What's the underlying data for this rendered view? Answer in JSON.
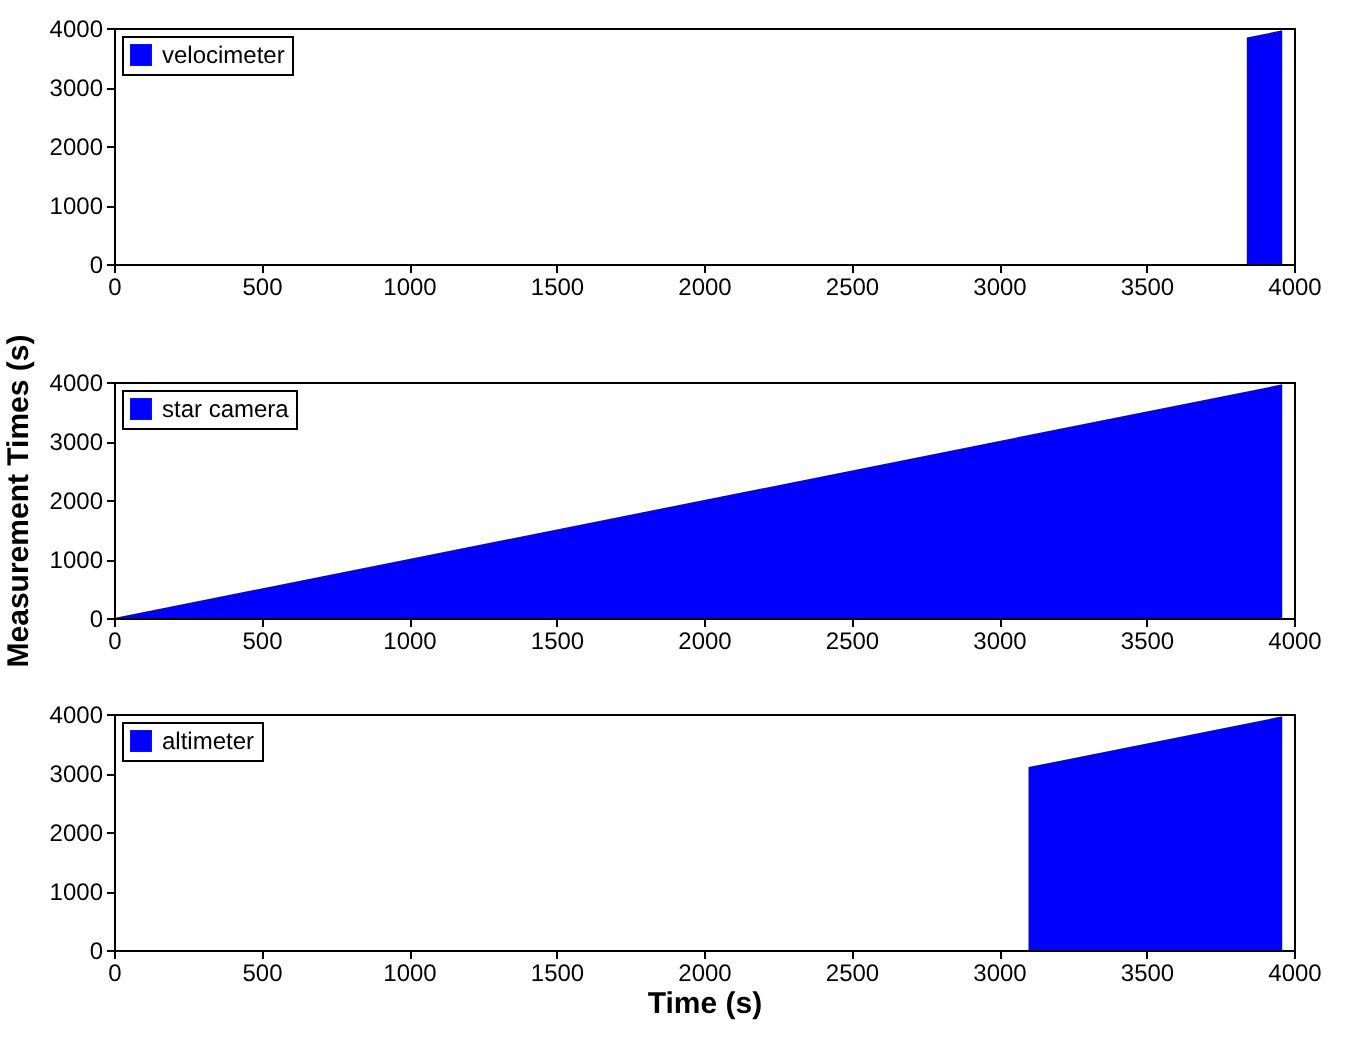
{
  "chart_data": [
    {
      "type": "area",
      "x": [
        0,
        3840,
        3840,
        3960,
        3960
      ],
      "series": [
        {
          "name": "velocimeter",
          "color": "#0000ff",
          "values": [
            0,
            0,
            3840,
            3960,
            0
          ]
        }
      ],
      "xlim": [
        0,
        4000
      ],
      "xticks": [
        0,
        500,
        1000,
        1500,
        2000,
        2500,
        3000,
        3500,
        4000
      ],
      "ylim": [
        0,
        4000
      ],
      "yticks": [
        0,
        1000,
        2000,
        3000,
        4000
      ],
      "legend": "top left",
      "grid": false
    },
    {
      "type": "area",
      "x": [
        0,
        3960,
        3960
      ],
      "series": [
        {
          "name": "star camera",
          "color": "#0000ff",
          "values": [
            0,
            3960,
            0
          ]
        }
      ],
      "ylabel": "Measurement Times (s)",
      "xlim": [
        0,
        4000
      ],
      "xticks": [
        0,
        500,
        1000,
        1500,
        2000,
        2500,
        3000,
        3500,
        4000
      ],
      "ylim": [
        0,
        4000
      ],
      "yticks": [
        0,
        1000,
        2000,
        3000,
        4000
      ],
      "legend": "top left",
      "grid": false
    },
    {
      "type": "area",
      "x": [
        0,
        3100,
        3100,
        3960,
        3960
      ],
      "series": [
        {
          "name": "altimeter",
          "color": "#0000ff",
          "values": [
            0,
            0,
            3100,
            3960,
            0
          ]
        }
      ],
      "xlabel": "Time (s)",
      "xlim": [
        0,
        4000
      ],
      "xticks": [
        0,
        500,
        1000,
        1500,
        2000,
        2500,
        3000,
        3500,
        4000
      ],
      "ylim": [
        0,
        4000
      ],
      "yticks": [
        0,
        1000,
        2000,
        3000,
        4000
      ],
      "legend": "top left",
      "grid": false
    }
  ]
}
